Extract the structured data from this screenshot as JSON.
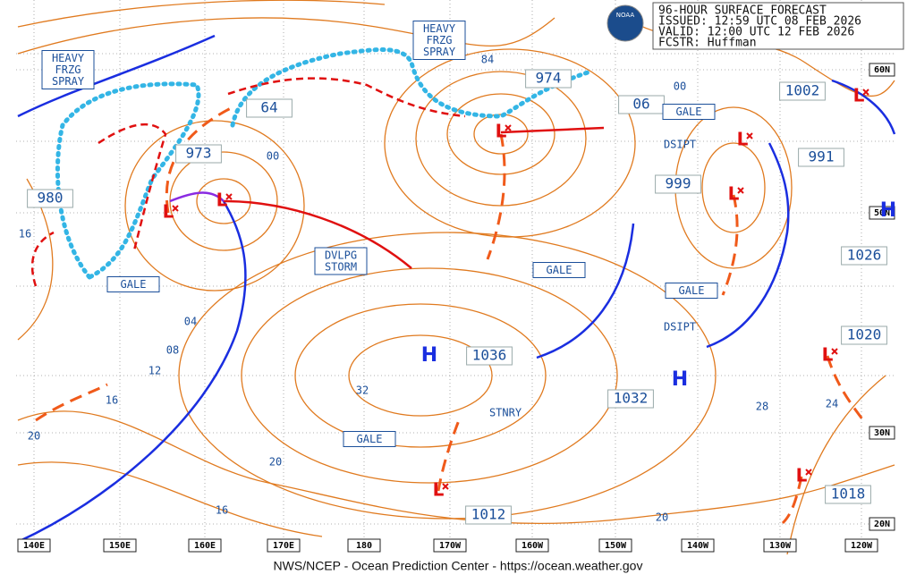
{
  "header": {
    "lines": [
      "96-HOUR SURFACE FORECAST",
      "ISSUED: 12:59 UTC 08 FEB 2026",
      "VALID:  12:00 UTC 12 FEB 2026",
      "FCSTR:  Huffman"
    ]
  },
  "logo": "NOAA",
  "footer": "NWS/NCEP - Ocean Prediction Center - https://ocean.weather.gov",
  "longitudes": [
    "140E",
    "150E",
    "160E",
    "170E",
    "180",
    "170W",
    "160W",
    "150W",
    "140W",
    "130W",
    "120W"
  ],
  "latitudes": [
    "60N",
    "50N",
    "30N",
    "20N"
  ],
  "pressure_centers": [
    "980",
    "973",
    "64",
    "974",
    "06",
    "1002",
    "991",
    "999",
    "1026",
    "1020",
    "1036",
    "1032",
    "1012",
    "1018"
  ],
  "isobar_labels": [
    "00",
    "84",
    "00",
    "16",
    "04",
    "08",
    "12",
    "16",
    "20",
    "32",
    "20",
    "16",
    "28",
    "24",
    "20"
  ],
  "highs": [
    "H",
    "H",
    "H"
  ],
  "lows": [
    "L",
    "L",
    "L",
    "L",
    "L",
    "L",
    "L",
    "L",
    "L"
  ],
  "boxed_notes": [
    [
      "HEAVY",
      "FRZG",
      "SPRAY"
    ],
    [
      "HEAVY",
      "FRZG",
      "SPRAY"
    ],
    [
      "DVLPG",
      "STORM"
    ],
    [
      "GALE"
    ],
    [
      "GALE"
    ],
    [
      "GALE"
    ],
    [
      "GALE"
    ],
    [
      "GALE"
    ]
  ],
  "plain_notes": [
    "DSIPT",
    "DSIPT",
    "STNRY"
  ]
}
